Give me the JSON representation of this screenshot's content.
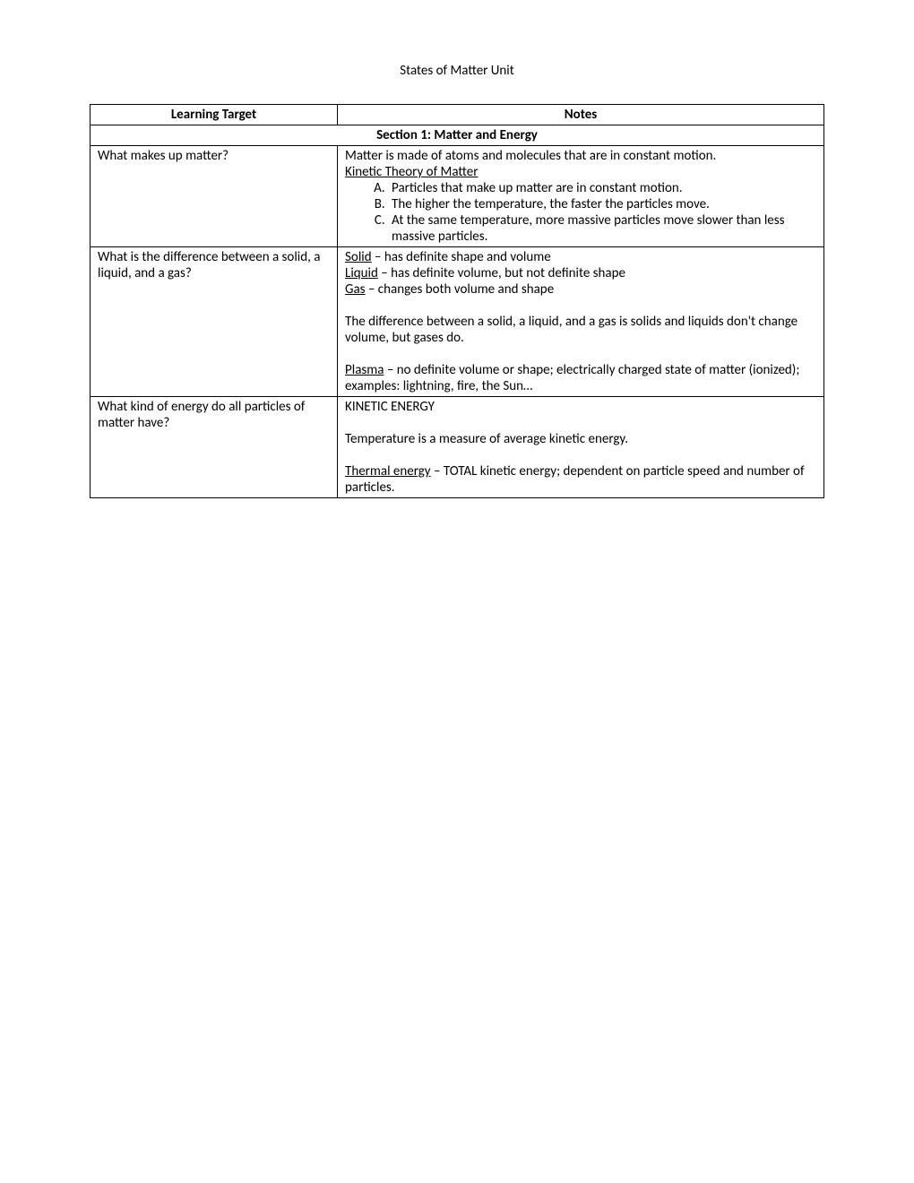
{
  "document": {
    "title": "States of Matter Unit",
    "header_left": "Learning Target",
    "header_right": "Notes",
    "section_header": "Section 1:  Matter and Energy",
    "rows": [
      {
        "question": "What makes up matter?",
        "answer": {
          "intro1": "Matter is made of atoms and molecules that are in constant motion.",
          "subtitle": "Kinetic Theory of Matter",
          "list": [
            "Particles that make up matter are in constant motion.",
            "The higher the temperature, the faster the particles move.",
            "At the same temperature, more massive particles move slower than less massive particles."
          ]
        }
      },
      {
        "question": "What is the difference between a solid, a liquid, and a gas?",
        "answer": {
          "solid_label": "Solid",
          "solid_text": " – has definite shape and volume",
          "liquid_label": "Liquid",
          "liquid_text": " – has definite volume, but not definite shape",
          "gas_label": "Gas",
          "gas_text": " – changes both volume and shape",
          "diff": "The difference between a solid, a liquid, and a gas is solids and liquids don't change volume, but gases do.",
          "plasma_label": "Plasma",
          "plasma_text": " – no definite volume or shape; electrically charged state of matter (ionized); examples:  lightning, fire, the Sun…"
        }
      },
      {
        "question": "What kind of energy do all particles of matter have?",
        "answer": {
          "kinetic": "KINETIC ENERGY",
          "temp": "Temperature is a measure of average kinetic energy.",
          "thermal_label": "Thermal energy",
          "thermal_text": " – TOTAL kinetic energy; dependent on particle speed and number of particles."
        }
      }
    ]
  }
}
